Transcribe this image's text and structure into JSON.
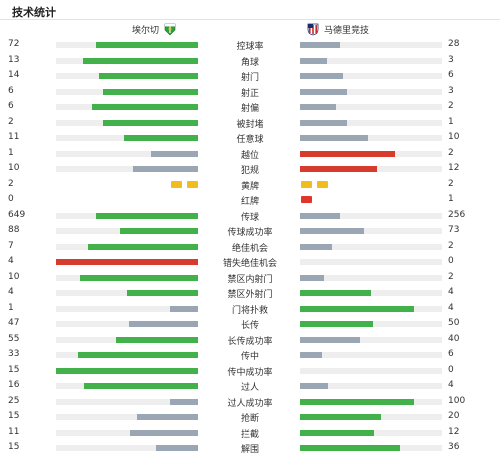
{
  "header": {
    "title": "技术统计"
  },
  "teams": {
    "home": {
      "name": "埃尔切",
      "badge_icon": "elche-badge-icon",
      "color": "#2e9e3e"
    },
    "away": {
      "name": "马德里竞技",
      "badge_icon": "atletico-badge-icon",
      "color": "#cc2a2a"
    }
  },
  "colors": {
    "green": "#42b14a",
    "gray": "#9aa6b4",
    "red": "#d63b2b",
    "yellow": "#f1bd1d"
  },
  "stats": [
    {
      "name": "控球率",
      "home": "72",
      "away": "28",
      "home_share": 0.72,
      "away_share": 0.28,
      "home_color": "green",
      "away_color": "gray"
    },
    {
      "name": "角球",
      "home": "13",
      "away": "3",
      "home_share": 0.8125,
      "away_share": 0.1875,
      "home_color": "green",
      "away_color": "gray"
    },
    {
      "name": "射门",
      "home": "14",
      "away": "6",
      "home_share": 0.7,
      "away_share": 0.3,
      "home_color": "green",
      "away_color": "gray"
    },
    {
      "name": "射正",
      "home": "6",
      "away": "3",
      "home_share": 0.6667,
      "away_share": 0.3333,
      "home_color": "green",
      "away_color": "gray"
    },
    {
      "name": "射偏",
      "home": "6",
      "away": "2",
      "home_share": 0.75,
      "away_share": 0.25,
      "home_color": "green",
      "away_color": "gray"
    },
    {
      "name": "被封堵",
      "home": "2",
      "away": "1",
      "home_share": 0.6667,
      "away_share": 0.3333,
      "home_color": "green",
      "away_color": "gray"
    },
    {
      "name": "任意球",
      "home": "11",
      "away": "10",
      "home_share": 0.5238,
      "away_share": 0.4762,
      "home_color": "green",
      "away_color": "gray"
    },
    {
      "name": "越位",
      "home": "1",
      "away": "2",
      "home_share": 0.3333,
      "away_share": 0.6667,
      "home_color": "gray",
      "away_color": "red"
    },
    {
      "name": "犯规",
      "home": "10",
      "away": "12",
      "home_share": 0.4545,
      "away_share": 0.5455,
      "home_color": "gray",
      "away_color": "red"
    },
    {
      "name": "黄牌",
      "home": "2",
      "away": "2",
      "type": "yellow-cards",
      "home_cards": 2,
      "away_cards": 2
    },
    {
      "name": "红牌",
      "home": "0",
      "away": "1",
      "type": "red-cards",
      "home_cards": 0,
      "away_cards": 1
    },
    {
      "name": "传球",
      "home": "649",
      "away": "256",
      "home_share": 0.717,
      "away_share": 0.283,
      "home_color": "green",
      "away_color": "gray"
    },
    {
      "name": "传球成功率",
      "home": "88",
      "away": "73",
      "home_share": 0.5466,
      "away_share": 0.4534,
      "home_color": "green",
      "away_color": "gray"
    },
    {
      "name": "绝佳机会",
      "home": "7",
      "away": "2",
      "home_share": 0.7778,
      "away_share": 0.2222,
      "home_color": "green",
      "away_color": "gray"
    },
    {
      "name": "错失绝佳机会",
      "home": "4",
      "away": "0",
      "home_share": 1.0,
      "away_share": 0,
      "home_color": "red",
      "away_color": "gray"
    },
    {
      "name": "禁区内射门",
      "home": "10",
      "away": "2",
      "home_share": 0.8333,
      "away_share": 0.1667,
      "home_color": "green",
      "away_color": "gray"
    },
    {
      "name": "禁区外射门",
      "home": "4",
      "away": "4",
      "home_share": 0.5,
      "away_share": 0.5,
      "home_color": "green",
      "away_color": "green"
    },
    {
      "name": "门将扑救",
      "home": "1",
      "away": "4",
      "home_share": 0.2,
      "away_share": 0.8,
      "home_color": "gray",
      "away_color": "green"
    },
    {
      "name": "长传",
      "home": "47",
      "away": "50",
      "home_share": 0.4845,
      "away_share": 0.5155,
      "home_color": "gray",
      "away_color": "green"
    },
    {
      "name": "长传成功率",
      "home": "55",
      "away": "40",
      "home_share": 0.5789,
      "away_share": 0.4211,
      "home_color": "green",
      "away_color": "gray"
    },
    {
      "name": "传中",
      "home": "33",
      "away": "6",
      "home_share": 0.8462,
      "away_share": 0.1538,
      "home_color": "green",
      "away_color": "gray"
    },
    {
      "name": "传中成功率",
      "home": "15",
      "away": "0",
      "home_share": 1.0,
      "away_share": 0,
      "home_color": "green",
      "away_color": "gray"
    },
    {
      "name": "过人",
      "home": "16",
      "away": "4",
      "home_share": 0.8,
      "away_share": 0.2,
      "home_color": "green",
      "away_color": "gray"
    },
    {
      "name": "过人成功率",
      "home": "25",
      "away": "100",
      "home_share": 0.2,
      "away_share": 0.8,
      "home_color": "gray",
      "away_color": "green"
    },
    {
      "name": "抢断",
      "home": "15",
      "away": "20",
      "home_share": 0.4286,
      "away_share": 0.5714,
      "home_color": "gray",
      "away_color": "green"
    },
    {
      "name": "拦截",
      "home": "11",
      "away": "12",
      "home_share": 0.4783,
      "away_share": 0.5217,
      "home_color": "gray",
      "away_color": "green"
    },
    {
      "name": "解围",
      "home": "15",
      "away": "36",
      "home_share": 0.2941,
      "away_share": 0.7059,
      "home_color": "gray",
      "away_color": "green"
    }
  ]
}
